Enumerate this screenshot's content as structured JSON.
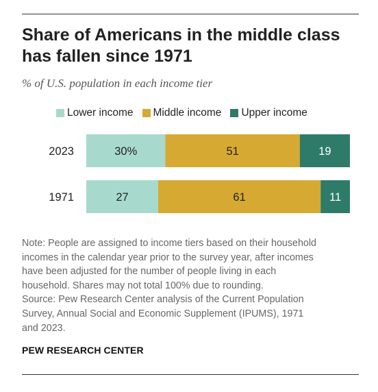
{
  "title": "Share of Americans in the middle class has fallen since 1971",
  "subtitle": "% of U.S. population in each income tier",
  "legend": [
    {
      "label": "Lower income",
      "color": "#a7dacd"
    },
    {
      "label": "Middle income",
      "color": "#d6a933"
    },
    {
      "label": "Upper income",
      "color": "#2e7b6a"
    }
  ],
  "chart_data": {
    "type": "bar",
    "orientation": "horizontal",
    "stacked": true,
    "categories": [
      "2023",
      "1971"
    ],
    "series": [
      {
        "name": "Lower income",
        "values": [
          30,
          27
        ],
        "labels": [
          "30%",
          "27"
        ],
        "color": "#a7dacd",
        "label_color": "#222222"
      },
      {
        "name": "Middle income",
        "values": [
          51,
          61
        ],
        "labels": [
          "51",
          "61"
        ],
        "color": "#d6a933",
        "label_color": "#222222"
      },
      {
        "name": "Upper income",
        "values": [
          19,
          11
        ],
        "labels": [
          "19",
          "11"
        ],
        "color": "#2e7b6a",
        "label_color": "#ffffff"
      }
    ]
  },
  "notes": [
    "Note: People are assigned to income tiers based on their household",
    "incomes in the calendar year prior to the survey year, after incomes",
    "have been adjusted for the number of people living in each",
    "household. Shares may not total 100% due to rounding.",
    "Source: Pew Research Center analysis of the Current Population",
    "Survey, Annual Social and Economic Supplement (IPUMS), 1971",
    "and 2023."
  ],
  "organization": "PEW RESEARCH CENTER"
}
